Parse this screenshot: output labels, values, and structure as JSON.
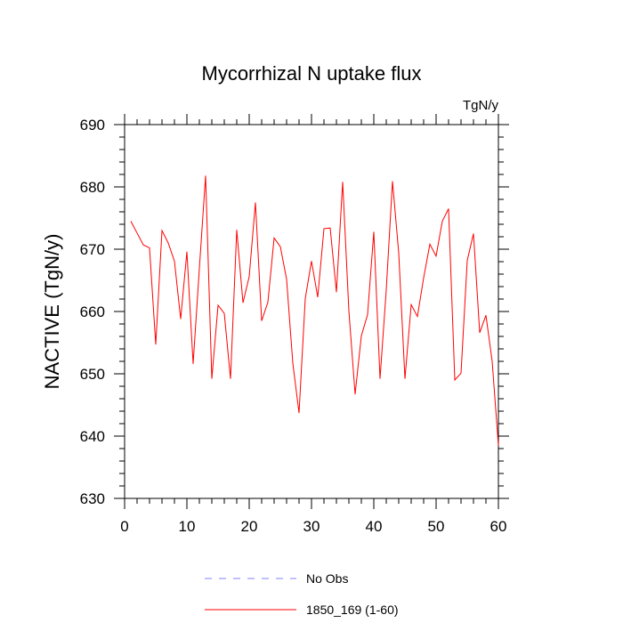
{
  "chart_data": {
    "type": "line",
    "title": "Mycorrhizal N uptake flux",
    "units_label": "TgN/y",
    "xlabel": "",
    "ylabel": "NACTIVE  (TgN/y)",
    "xlim": [
      0,
      60
    ],
    "ylim": [
      630,
      690
    ],
    "x_ticks": [
      0,
      10,
      20,
      30,
      40,
      50,
      60
    ],
    "y_ticks": [
      630,
      640,
      650,
      660,
      670,
      680,
      690
    ],
    "grid": false,
    "legend_position": "bottom",
    "series": [
      {
        "name": "No Obs",
        "color": "#8080ff",
        "dash": "dashed",
        "x": [],
        "values": []
      },
      {
        "name": "1850_169 (1-60)",
        "color": "#ff0000",
        "dash": "solid",
        "x": [
          1,
          2,
          3,
          4,
          5,
          6,
          7,
          8,
          9,
          10,
          11,
          12,
          13,
          14,
          15,
          16,
          17,
          18,
          19,
          20,
          21,
          22,
          23,
          24,
          25,
          26,
          27,
          28,
          29,
          30,
          31,
          32,
          33,
          34,
          35,
          36,
          37,
          38,
          39,
          40,
          41,
          42,
          43,
          44,
          45,
          46,
          47,
          48,
          49,
          50,
          51,
          52,
          53,
          54,
          55,
          56,
          57,
          58,
          59,
          60
        ],
        "values": [
          674.5,
          672.6,
          670.7,
          670.2,
          654.7,
          673.0,
          671.0,
          668.1,
          658.8,
          669.6,
          651.6,
          666.9,
          681.8,
          649.2,
          661.0,
          659.7,
          649.2,
          673.1,
          661.4,
          665.6,
          677.5,
          658.5,
          661.5,
          671.8,
          670.4,
          665.2,
          651.7,
          643.7,
          662.1,
          668.1,
          662.3,
          673.3,
          673.4,
          663.1,
          680.8,
          660.1,
          646.7,
          656.1,
          659.5,
          672.8,
          649.2,
          663.5,
          680.9,
          669.4,
          649.2,
          661.1,
          659.2,
          665.4,
          670.8,
          668.9,
          674.5,
          676.5,
          649.0,
          650.1,
          668.2,
          672.5,
          656.6,
          659.4,
          652.0,
          638.5
        ]
      }
    ]
  }
}
